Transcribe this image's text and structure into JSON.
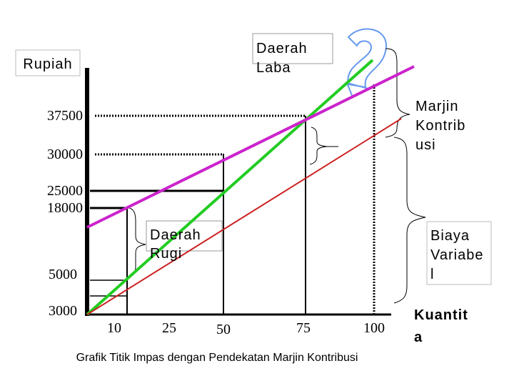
{
  "chart_data": {
    "type": "line",
    "title": "",
    "caption": "Grafik Titik Impas dengan Pendekatan Marjin Kontribusi",
    "ylabel": "Rupiah",
    "xlabel": "Kuantit a",
    "x_ticks": [
      "10",
      "25",
      "50",
      "75",
      "100"
    ],
    "y_ticks": [
      "37500",
      "30000",
      "25000",
      "18000",
      "5000",
      "3000"
    ],
    "annotations": {
      "profit_area": "Daerah Laba",
      "loss_area": "Daerah Rugi",
      "contribution_margin": "Marjin Kontrib usi",
      "variable_cost": "Biaya Variabe l"
    },
    "series": [
      {
        "color": "#22cc22",
        "role": "revenue"
      },
      {
        "color": "#cc22cc",
        "role": "total-cost"
      },
      {
        "color": "#cc2222",
        "role": "variable-cost"
      }
    ],
    "grid": false,
    "legend": "none"
  }
}
